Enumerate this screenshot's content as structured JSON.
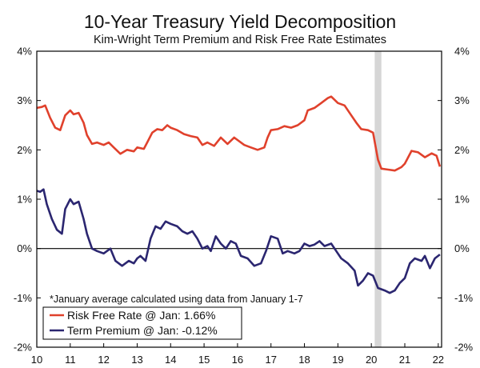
{
  "colors": {
    "risk_free": "#e0412c",
    "term_premium": "#2b2670",
    "recession": "#d6d6d6",
    "axis": "#000000"
  },
  "chart_data": {
    "type": "line",
    "title": "10-Year Treasury Yield Decomposition",
    "subtitle": "Kim-Wright Term Premium and Risk Free Rate Estimates",
    "note": "*January average calculated using data from January 1-7",
    "xlim": [
      2010,
      2022.1
    ],
    "ylim": [
      -2,
      4
    ],
    "x_ticks": [
      10,
      11,
      12,
      13,
      14,
      15,
      16,
      17,
      18,
      19,
      20,
      21,
      22
    ],
    "y_ticks_left": [
      "-2%",
      "-1%",
      "0%",
      "1%",
      "2%",
      "3%",
      "4%"
    ],
    "y_ticks_right": [
      "-2%",
      "-1%",
      "0%",
      "1%",
      "2%",
      "3%",
      "4%"
    ],
    "y_tick_values": [
      -2,
      -1,
      0,
      1,
      2,
      3,
      4
    ],
    "zero_line": true,
    "recession_band": [
      2020.1,
      2020.3
    ],
    "legend": {
      "placement": "bottom-left",
      "entries": [
        "Risk Free Rate @ Jan: 1.66%",
        "Term Premium @ Jan: -0.12%"
      ]
    },
    "series": [
      {
        "name": "Risk Free Rate @ Jan: 1.66%",
        "points": [
          [
            2010.0,
            2.85
          ],
          [
            2010.15,
            2.87
          ],
          [
            2010.25,
            2.9
          ],
          [
            2010.4,
            2.65
          ],
          [
            2010.55,
            2.45
          ],
          [
            2010.7,
            2.4
          ],
          [
            2010.85,
            2.7
          ],
          [
            2011.0,
            2.8
          ],
          [
            2011.1,
            2.72
          ],
          [
            2011.25,
            2.75
          ],
          [
            2011.4,
            2.55
          ],
          [
            2011.5,
            2.3
          ],
          [
            2011.65,
            2.12
          ],
          [
            2011.8,
            2.15
          ],
          [
            2012.0,
            2.1
          ],
          [
            2012.15,
            2.15
          ],
          [
            2012.3,
            2.05
          ],
          [
            2012.5,
            1.92
          ],
          [
            2012.7,
            2.0
          ],
          [
            2012.9,
            1.97
          ],
          [
            2013.0,
            2.05
          ],
          [
            2013.2,
            2.02
          ],
          [
            2013.3,
            2.15
          ],
          [
            2013.45,
            2.35
          ],
          [
            2013.6,
            2.42
          ],
          [
            2013.75,
            2.4
          ],
          [
            2013.9,
            2.5
          ],
          [
            2014.0,
            2.45
          ],
          [
            2014.2,
            2.4
          ],
          [
            2014.4,
            2.32
          ],
          [
            2014.6,
            2.28
          ],
          [
            2014.8,
            2.25
          ],
          [
            2014.95,
            2.1
          ],
          [
            2015.1,
            2.15
          ],
          [
            2015.3,
            2.08
          ],
          [
            2015.5,
            2.25
          ],
          [
            2015.7,
            2.12
          ],
          [
            2015.9,
            2.25
          ],
          [
            2016.0,
            2.2
          ],
          [
            2016.2,
            2.1
          ],
          [
            2016.4,
            2.05
          ],
          [
            2016.6,
            2.0
          ],
          [
            2016.8,
            2.05
          ],
          [
            2016.9,
            2.25
          ],
          [
            2017.0,
            2.4
          ],
          [
            2017.2,
            2.42
          ],
          [
            2017.4,
            2.48
          ],
          [
            2017.6,
            2.45
          ],
          [
            2017.8,
            2.5
          ],
          [
            2018.0,
            2.6
          ],
          [
            2018.1,
            2.8
          ],
          [
            2018.3,
            2.85
          ],
          [
            2018.5,
            2.95
          ],
          [
            2018.7,
            3.05
          ],
          [
            2018.8,
            3.08
          ],
          [
            2019.0,
            2.95
          ],
          [
            2019.2,
            2.9
          ],
          [
            2019.4,
            2.7
          ],
          [
            2019.55,
            2.55
          ],
          [
            2019.7,
            2.42
          ],
          [
            2019.9,
            2.4
          ],
          [
            2020.05,
            2.35
          ],
          [
            2020.2,
            1.8
          ],
          [
            2020.3,
            1.62
          ],
          [
            2020.5,
            1.6
          ],
          [
            2020.7,
            1.58
          ],
          [
            2020.9,
            1.65
          ],
          [
            2021.0,
            1.72
          ],
          [
            2021.2,
            1.98
          ],
          [
            2021.4,
            1.95
          ],
          [
            2021.6,
            1.85
          ],
          [
            2021.8,
            1.93
          ],
          [
            2021.95,
            1.88
          ],
          [
            2022.05,
            1.66
          ]
        ]
      },
      {
        "name": "Term Premium @ Jan: -0.12%",
        "points": [
          [
            2010.0,
            1.17
          ],
          [
            2010.1,
            1.15
          ],
          [
            2010.2,
            1.2
          ],
          [
            2010.3,
            0.9
          ],
          [
            2010.45,
            0.6
          ],
          [
            2010.6,
            0.38
          ],
          [
            2010.75,
            0.3
          ],
          [
            2010.85,
            0.8
          ],
          [
            2011.0,
            1.0
          ],
          [
            2011.1,
            0.9
          ],
          [
            2011.25,
            0.95
          ],
          [
            2011.4,
            0.6
          ],
          [
            2011.5,
            0.3
          ],
          [
            2011.65,
            0.0
          ],
          [
            2011.8,
            -0.05
          ],
          [
            2012.0,
            -0.1
          ],
          [
            2012.2,
            0.0
          ],
          [
            2012.35,
            -0.25
          ],
          [
            2012.55,
            -0.35
          ],
          [
            2012.75,
            -0.25
          ],
          [
            2012.9,
            -0.3
          ],
          [
            2013.0,
            -0.2
          ],
          [
            2013.1,
            -0.15
          ],
          [
            2013.25,
            -0.25
          ],
          [
            2013.4,
            0.2
          ],
          [
            2013.55,
            0.45
          ],
          [
            2013.7,
            0.4
          ],
          [
            2013.85,
            0.55
          ],
          [
            2014.0,
            0.5
          ],
          [
            2014.2,
            0.45
          ],
          [
            2014.35,
            0.35
          ],
          [
            2014.5,
            0.3
          ],
          [
            2014.65,
            0.35
          ],
          [
            2014.8,
            0.2
          ],
          [
            2014.95,
            0.0
          ],
          [
            2015.1,
            0.05
          ],
          [
            2015.2,
            -0.05
          ],
          [
            2015.35,
            0.25
          ],
          [
            2015.5,
            0.1
          ],
          [
            2015.65,
            0.0
          ],
          [
            2015.8,
            0.15
          ],
          [
            2015.95,
            0.1
          ],
          [
            2016.1,
            -0.15
          ],
          [
            2016.3,
            -0.2
          ],
          [
            2016.5,
            -0.35
          ],
          [
            2016.7,
            -0.3
          ],
          [
            2016.85,
            -0.05
          ],
          [
            2017.0,
            0.25
          ],
          [
            2017.2,
            0.2
          ],
          [
            2017.35,
            -0.1
          ],
          [
            2017.5,
            -0.05
          ],
          [
            2017.7,
            -0.1
          ],
          [
            2017.85,
            -0.05
          ],
          [
            2018.0,
            0.1
          ],
          [
            2018.15,
            0.05
          ],
          [
            2018.3,
            0.08
          ],
          [
            2018.45,
            0.15
          ],
          [
            2018.6,
            0.05
          ],
          [
            2018.8,
            0.1
          ],
          [
            2018.95,
            -0.05
          ],
          [
            2019.1,
            -0.2
          ],
          [
            2019.3,
            -0.3
          ],
          [
            2019.5,
            -0.45
          ],
          [
            2019.6,
            -0.75
          ],
          [
            2019.75,
            -0.65
          ],
          [
            2019.9,
            -0.5
          ],
          [
            2020.05,
            -0.55
          ],
          [
            2020.2,
            -0.8
          ],
          [
            2020.4,
            -0.85
          ],
          [
            2020.55,
            -0.9
          ],
          [
            2020.7,
            -0.85
          ],
          [
            2020.85,
            -0.7
          ],
          [
            2021.0,
            -0.6
          ],
          [
            2021.15,
            -0.3
          ],
          [
            2021.3,
            -0.2
          ],
          [
            2021.5,
            -0.25
          ],
          [
            2021.6,
            -0.15
          ],
          [
            2021.75,
            -0.4
          ],
          [
            2021.9,
            -0.2
          ],
          [
            2022.05,
            -0.12
          ]
        ]
      }
    ]
  }
}
